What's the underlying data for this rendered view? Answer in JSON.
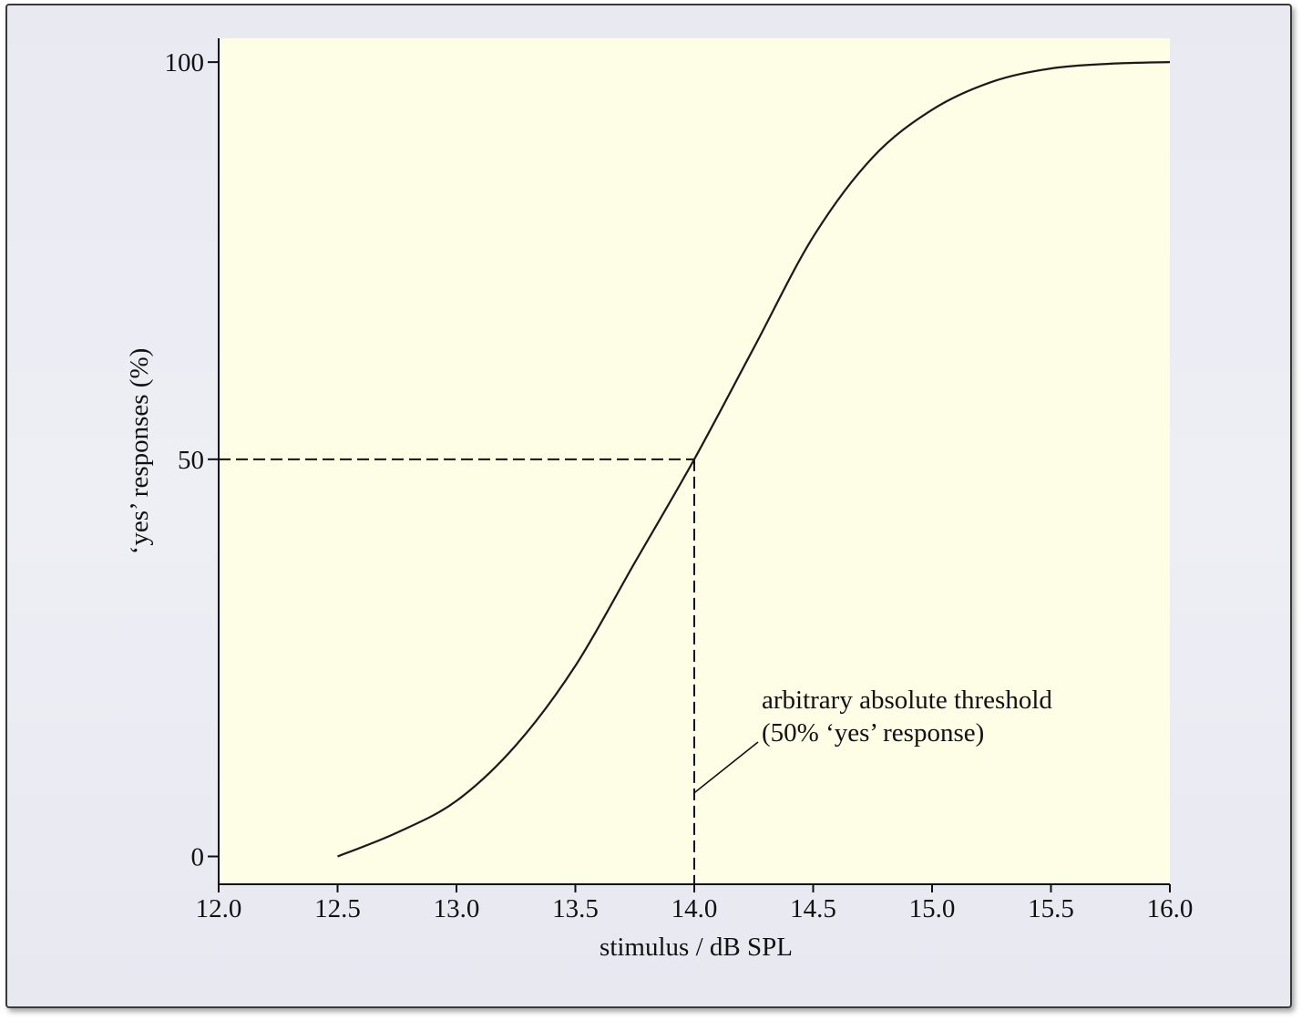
{
  "chart_data": {
    "type": "line",
    "xlabel": "stimulus / dB SPL",
    "ylabel": "‘yes’ responses (%)",
    "xlim": [
      12.0,
      16.0
    ],
    "ylim": [
      -3.5,
      103
    ],
    "xticks": [
      "12.0",
      "12.5",
      "13.0",
      "13.5",
      "14.0",
      "14.5",
      "15.0",
      "15.5",
      "16.0"
    ],
    "yticks": [
      "0",
      "50",
      "100"
    ],
    "grid": false,
    "colors": {
      "plot_background": "#fefde6",
      "curve": "#1a1a1a"
    },
    "series": [
      {
        "x": [
          12.5,
          12.75,
          13.0,
          13.25,
          13.5,
          13.75,
          14.0,
          14.25,
          14.5,
          14.75,
          15.0,
          15.25,
          15.5,
          15.75,
          16.0
        ],
        "y": [
          0,
          3,
          7,
          14,
          24,
          37,
          50,
          64,
          78,
          88,
          94,
          97.5,
          99.2,
          99.8,
          100
        ]
      }
    ],
    "reference_lines": {
      "threshold_x": 14.0,
      "threshold_y": 50
    },
    "annotation": {
      "line1": "arbitrary absolute threshold",
      "line2": "(50% ‘yes’ response)",
      "x": 14.0,
      "y": 8
    }
  }
}
